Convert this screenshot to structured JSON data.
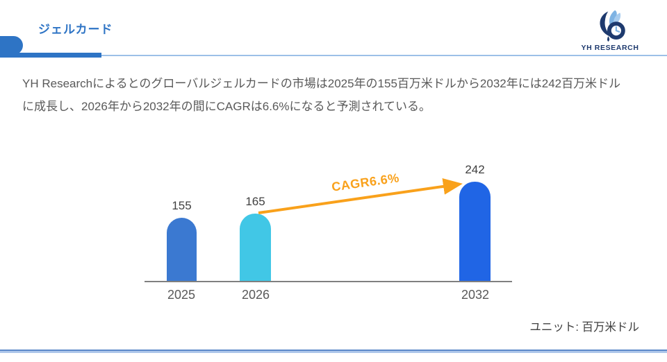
{
  "header": {
    "title": "ジェルカード",
    "logo_text": "YH RESEARCH"
  },
  "summary": {
    "lines": [
      "YH Researchによるとのグローバルジェルカードの市場は2025年の155百万米ドルから2032年には242百万米ドル",
      "に成長し、2026年から2032年の間にCAGRは6.6%になると予測されている。"
    ],
    "full_text": "YH Researchによるとのグローバルジェルカードの市場は2025年の155百万米ドルから2032年には242百万米ドルに成長し、2026年から2032年の間にCAGRは6.6%になると予測されている。"
  },
  "chart_data": {
    "type": "bar",
    "title": "",
    "categories": [
      "2025",
      "2026",
      "2032"
    ],
    "values": [
      155,
      165,
      242
    ],
    "bar_colors": [
      "#3b79d1",
      "#41c7e6",
      "#2065e5"
    ],
    "value_label_color": "#404040",
    "axis_color": "#7f7f7f",
    "ylim": [
      0,
      260
    ],
    "grid": false,
    "legend": false,
    "annotation": {
      "label": "CAGR6.6%",
      "color": "#f9a11b",
      "from_category": "2026",
      "to_category": "2032"
    },
    "unit": "百万米ドル"
  },
  "footer": {
    "unit_label": "ユニット: 百万米ドル"
  },
  "colors": {
    "accent_blue": "#2e74c5",
    "light_blue_line": "#9cc0e7",
    "body_text": "#595959",
    "logo_navy": "#1e3a6e",
    "bottom_rule_blue": "#5c88c9"
  }
}
